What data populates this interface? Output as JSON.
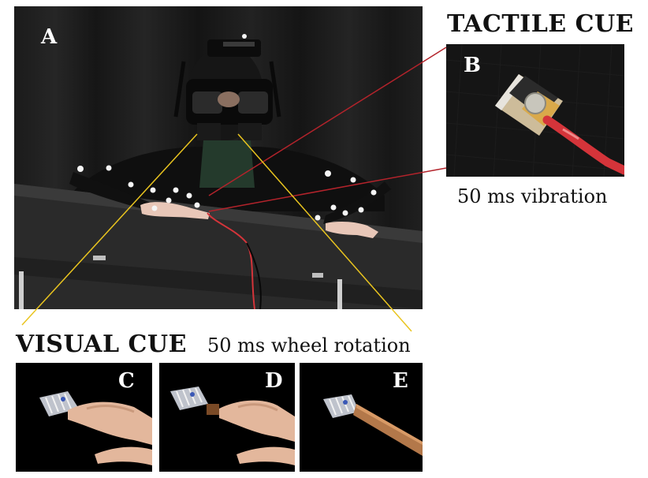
{
  "panels": {
    "a": {
      "letter": "A"
    },
    "b": {
      "letter": "B"
    },
    "c": {
      "letter": "C"
    },
    "d": {
      "letter": "D"
    },
    "e": {
      "letter": "E"
    }
  },
  "tactile": {
    "heading": "TACTILE CUE",
    "caption": "50 ms vibration"
  },
  "visual": {
    "heading": "VISUAL CUE",
    "caption": "50 ms wheel rotation"
  },
  "colors": {
    "tactile_line": "#b3232b",
    "visual_line": "#e9c41f",
    "cable": "#d4343a"
  }
}
